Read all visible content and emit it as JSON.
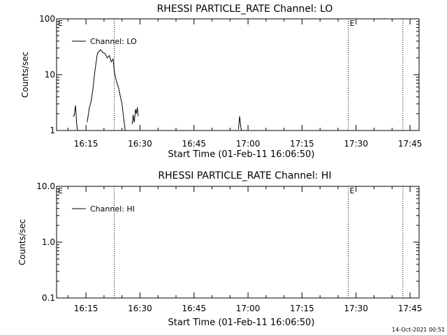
{
  "chart_data": [
    {
      "type": "line",
      "title": "RHESSI PARTICLE_RATE Channel: LO",
      "xlabel": "Start Time (01-Feb-11 16:06:50)",
      "ylabel": "Counts/sec",
      "yscale": "log",
      "ylim": [
        1,
        100
      ],
      "yticks": [
        1,
        10,
        100
      ],
      "ytick_labels": [
        "1",
        "10",
        "100"
      ],
      "xlim": [
        "16:06:50",
        "17:47:30"
      ],
      "xticks": [
        "16:15",
        "16:30",
        "16:45",
        "17:00",
        "17:15",
        "17:30",
        "17:45"
      ],
      "xtick_labels": [
        "16:15",
        "16:30",
        "16:45",
        "17:00",
        "17:15",
        "17:30",
        "17:45"
      ],
      "vlines": [
        "16:22:50",
        "17:27:50",
        "17:43:00"
      ],
      "marker_letter": "E",
      "markers_at": [
        "16:06:50",
        "17:27:50"
      ],
      "legend": "top-left",
      "series": [
        {
          "name": "Channel: LO",
          "segments": [
            {
              "x": [
                "16:11:20",
                "16:11:45",
                "16:12:05",
                "16:12:25",
                "16:12:45"
              ],
              "y": [
                1.8,
                1.85,
                2.8,
                1.3,
                0.9
              ]
            },
            {
              "x": [
                "16:15:20",
                "16:15:55",
                "16:16:25",
                "16:16:55",
                "16:17:30",
                "16:18:10",
                "16:19:00",
                "16:19:40",
                "16:20:15",
                "16:20:55",
                "16:21:30",
                "16:22:00",
                "16:22:30",
                "16:22:55",
                "16:23:30",
                "16:24:00",
                "16:24:30",
                "16:25:00",
                "16:25:30",
                "16:26:00"
              ],
              "y": [
                1.4,
                2.5,
                3.3,
                5.5,
                12,
                24,
                28,
                25,
                24,
                20,
                22,
                17,
                19,
                11,
                7.5,
                6.0,
                4.2,
                3.0,
                1.6,
                0.9
              ]
            },
            {
              "x": [
                "16:27:50",
                "16:28:05",
                "16:28:25",
                "16:28:45",
                "16:29:00",
                "16:29:15",
                "16:29:30"
              ],
              "y": [
                1.3,
                1.9,
                1.4,
                2.4,
                2.0,
                2.6,
                1.8
              ]
            },
            {
              "x": [
                "16:57:20",
                "16:57:40",
                "16:58:00",
                "16:58:20"
              ],
              "y": [
                1.05,
                1.8,
                1.15,
                0.9
              ]
            }
          ]
        }
      ]
    },
    {
      "type": "line",
      "title": "RHESSI PARTICLE_RATE Channel: HI",
      "xlabel": "Start Time (01-Feb-11 16:06:50)",
      "ylabel": "Counts/sec",
      "yscale": "log",
      "ylim": [
        0.1,
        10
      ],
      "yticks": [
        0.1,
        1,
        10
      ],
      "ytick_labels": [
        "0.1",
        "1.0",
        "10.0"
      ],
      "xlim": [
        "16:06:50",
        "17:47:30"
      ],
      "xticks": [
        "16:15",
        "16:30",
        "16:45",
        "17:00",
        "17:15",
        "17:30",
        "17:45"
      ],
      "xtick_labels": [
        "16:15",
        "16:30",
        "16:45",
        "17:00",
        "17:15",
        "17:30",
        "17:45"
      ],
      "vlines": [
        "16:22:50",
        "17:27:50",
        "17:43:00"
      ],
      "marker_letter": "E",
      "markers_at": [
        "16:06:50",
        "17:27:50"
      ],
      "legend": "top-left",
      "series": [
        {
          "name": "Channel: HI",
          "segments": []
        }
      ]
    }
  ],
  "footer": {
    "timestamp": "14-Oct-2021 00:51"
  }
}
